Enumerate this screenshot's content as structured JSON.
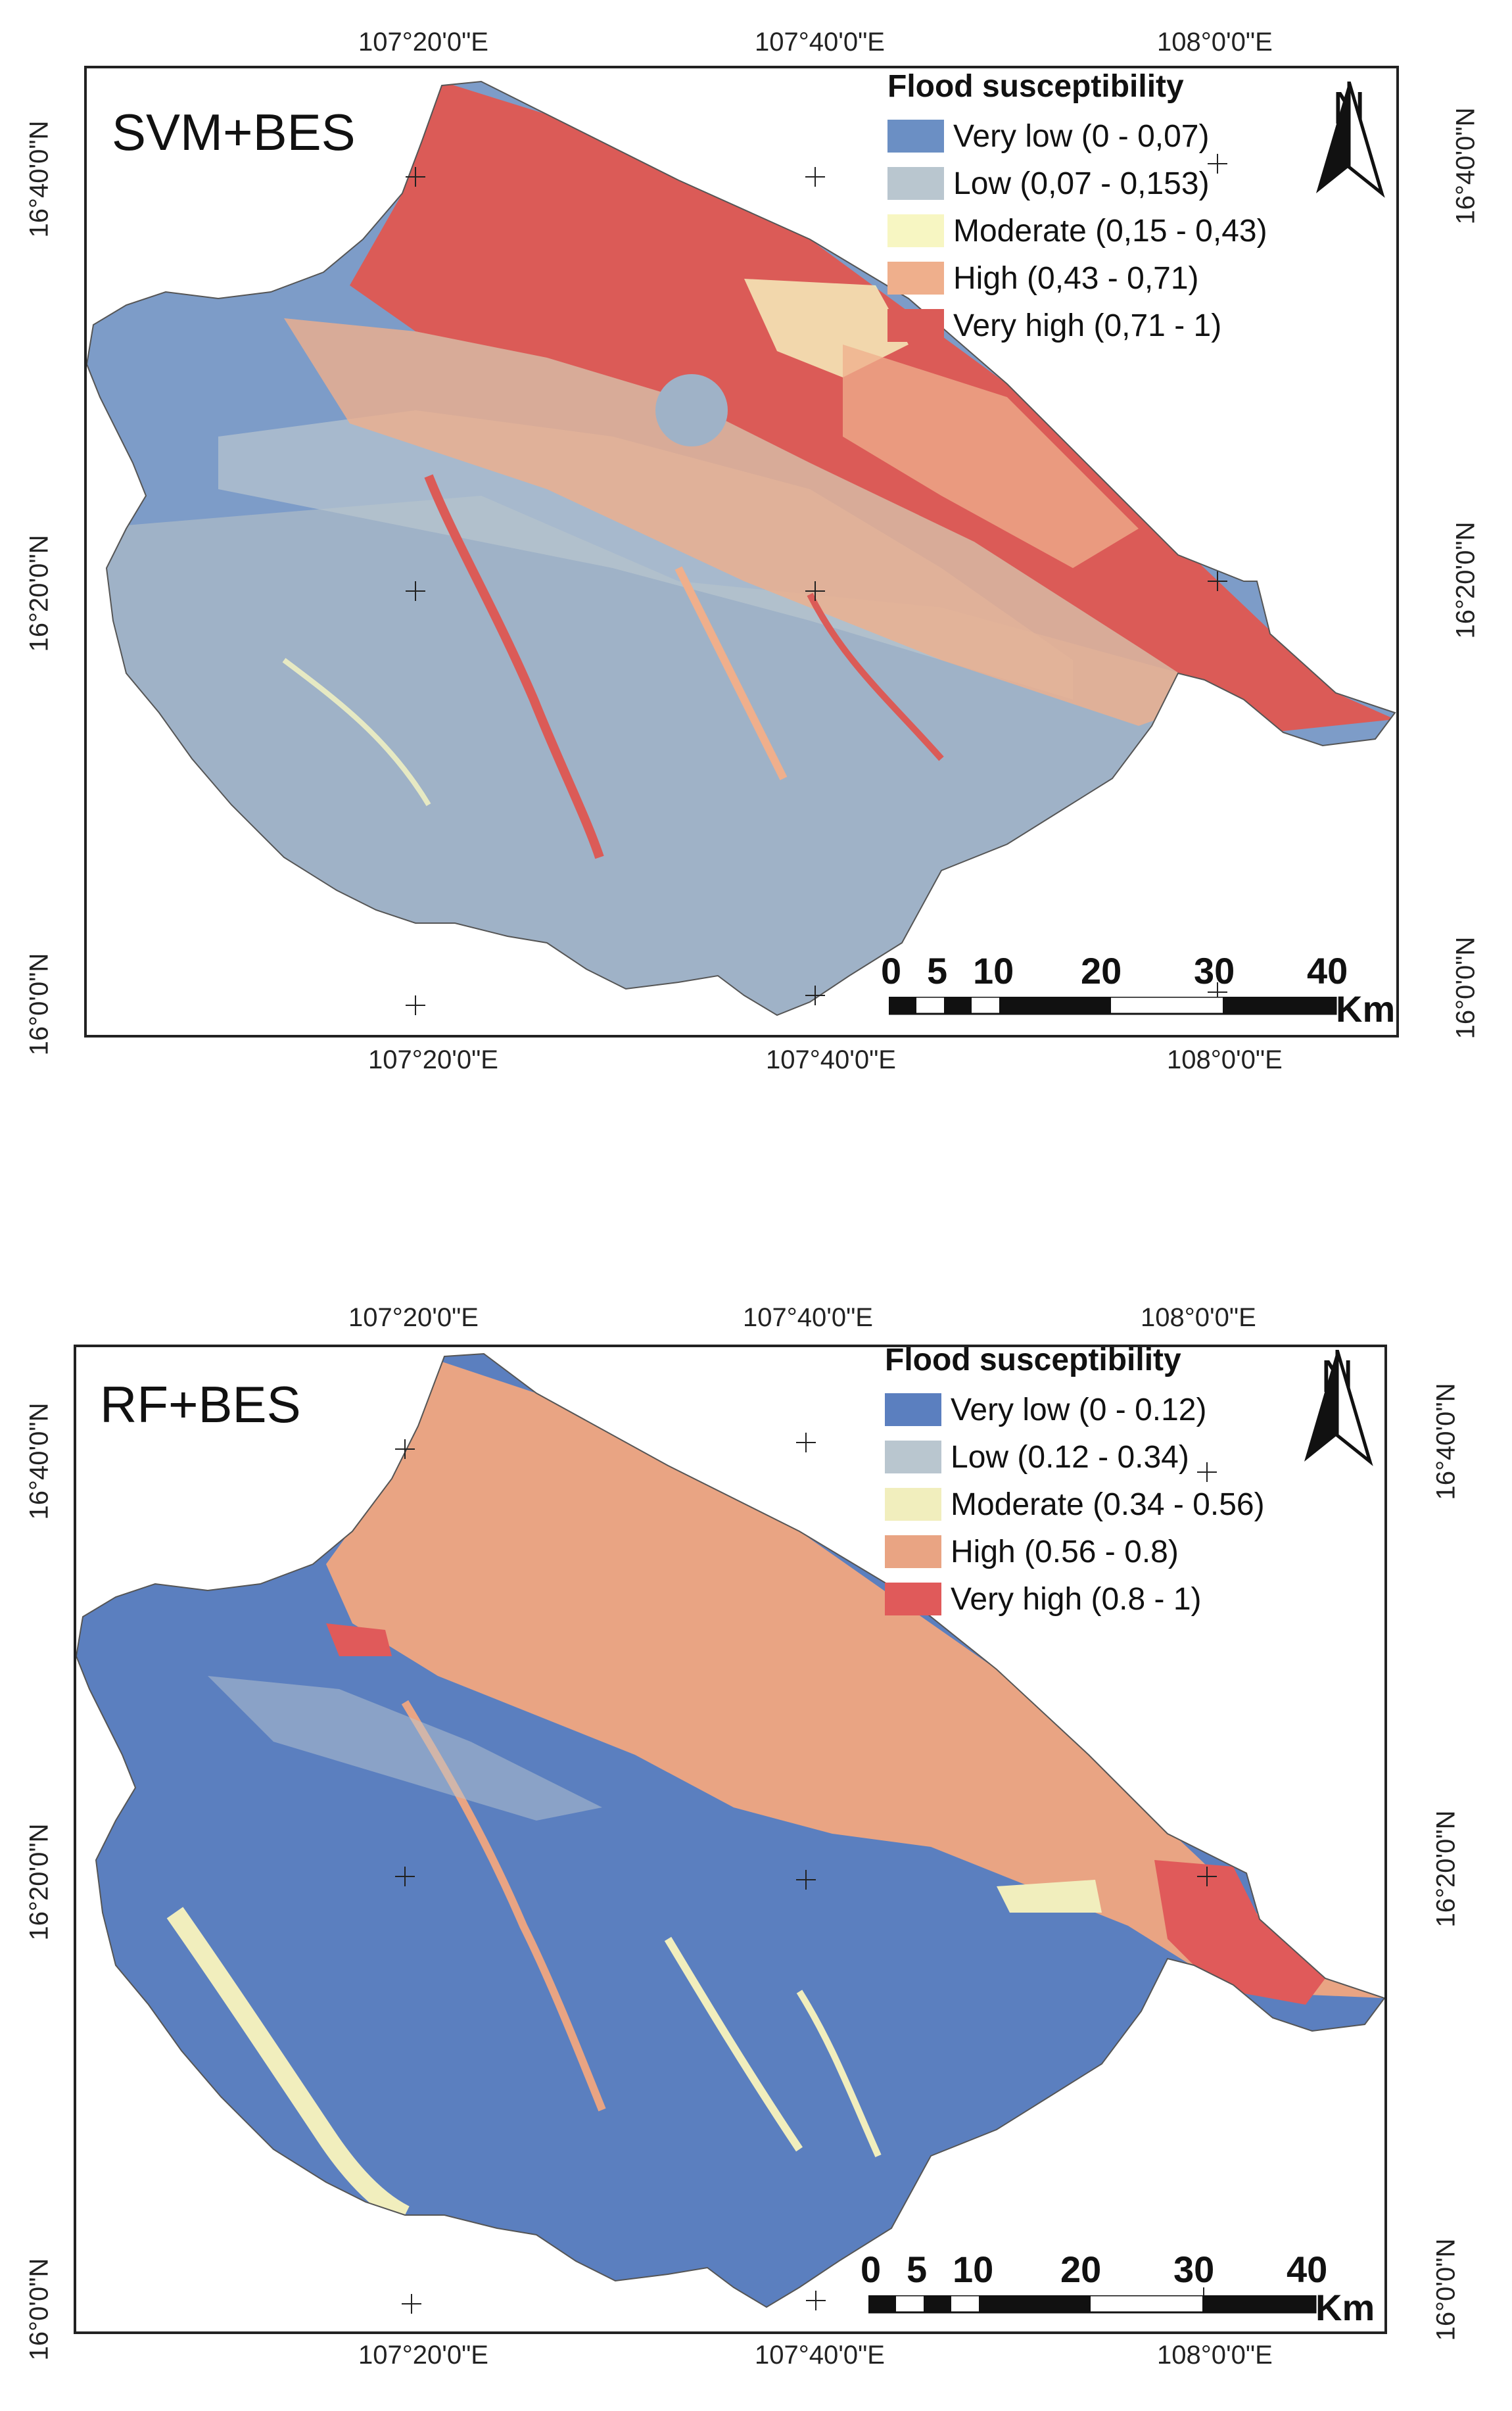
{
  "panels": [
    {
      "title": "SVM+BES",
      "legend": {
        "title": "Flood susceptibility",
        "classes": [
          {
            "label": "Very low (0 - 0,07)",
            "color": "#6b8fc4"
          },
          {
            "label": "Low (0,07 - 0,153)",
            "color": "#b9c6cf"
          },
          {
            "label": "Moderate (0,15 - 0,43)",
            "color": "#f7f6c2"
          },
          {
            "label": "High (0,43 - 0,71)",
            "color": "#efaf8c"
          },
          {
            "label": "Very high (0,71 - 1)",
            "color": "#db5b57"
          }
        ]
      },
      "top_lon": [
        "107°20'0\"E",
        "107°40'0\"E",
        "108°0'0\"E"
      ],
      "bottom_lon": [
        "107°20'0\"E",
        "107°40'0\"E",
        "108°0'0\"E"
      ],
      "left_lat": [
        "16°40'0\"N",
        "16°20'0\"N",
        "16°0'0\"N"
      ],
      "right_lat": [
        "16°40'0\"N",
        "16°20'0\"N",
        "16°0'0\"N"
      ],
      "north": "N",
      "scale": {
        "ticks": [
          "0",
          "5",
          "10",
          "20",
          "30",
          "40"
        ],
        "unit": "Km"
      }
    },
    {
      "title": "RF+BES",
      "legend": {
        "title": "Flood susceptibility",
        "classes": [
          {
            "label": "Very low (0 - 0.12)",
            "color": "#5b7fbf"
          },
          {
            "label": "Low (0.12 - 0.34)",
            "color": "#b9c6cf"
          },
          {
            "label": "Moderate (0.34 - 0.56)",
            "color": "#f1eebd"
          },
          {
            "label": "High (0.56 - 0.8)",
            "color": "#e9a483"
          },
          {
            "label": "Very high (0.8 - 1)",
            "color": "#e05a5a"
          }
        ]
      },
      "top_lon": [
        "107°20'0\"E",
        "107°40'0\"E",
        "108°0'0\"E"
      ],
      "bottom_lon": [
        "107°20'0\"E",
        "107°40'0\"E",
        "108°0'0\"E"
      ],
      "left_lat": [
        "16°40'0\"N",
        "16°20'0\"N",
        "16°0'0\"N"
      ],
      "right_lat": [
        "16°40'0\"N",
        "16°20'0\"N",
        "16°0'0\"N"
      ],
      "north": "N",
      "scale": {
        "ticks": [
          "0",
          "5",
          "10",
          "20",
          "30",
          "40"
        ],
        "unit": "Km"
      }
    }
  ]
}
